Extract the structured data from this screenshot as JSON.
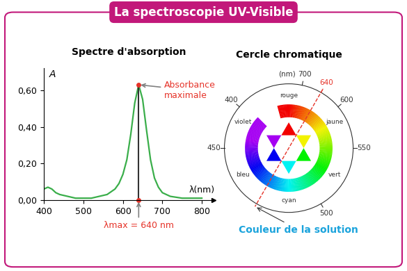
{
  "header": {
    "title": "La spectroscopie UV-Visible"
  },
  "chart_data": {
    "type": "line",
    "title": "Spectre d'absorption",
    "x_label": "λ(nm)",
    "y_label": "A",
    "color": "#3aae4a",
    "x": [
      400,
      410,
      420,
      430,
      440,
      460,
      480,
      500,
      520,
      540,
      560,
      580,
      590,
      600,
      610,
      620,
      630,
      640,
      650,
      660,
      670,
      680,
      690,
      700,
      720,
      750,
      800
    ],
    "values": [
      0.06,
      0.07,
      0.06,
      0.04,
      0.03,
      0.02,
      0.01,
      0.01,
      0.01,
      0.02,
      0.03,
      0.06,
      0.09,
      0.14,
      0.22,
      0.36,
      0.53,
      0.63,
      0.55,
      0.38,
      0.22,
      0.12,
      0.07,
      0.04,
      0.02,
      0.01,
      0.01
    ],
    "xlim": [
      400,
      830
    ],
    "ylim": [
      0,
      0.72
    ],
    "xticks": [
      400,
      500,
      600,
      700,
      800
    ],
    "yticks": [
      {
        "value": 0,
        "label": "0,00"
      },
      {
        "value": 0.2,
        "label": "0,20"
      },
      {
        "value": 0.4,
        "label": "0,40"
      },
      {
        "value": 0.6,
        "label": "0,60"
      }
    ],
    "peak": {
      "x": 640,
      "y": 0.63
    },
    "annotations": {
      "peak": "Absorbance\nmaximale",
      "lambda_max": "λmax = 640 nm"
    }
  },
  "color_wheel": {
    "title": "Cercle chromatique",
    "unit": "(nm)",
    "wavelengths": [
      400,
      450,
      500,
      550,
      600,
      640,
      700
    ],
    "highlight": 640,
    "color_names": [
      "rouge",
      "jaune",
      "vert",
      "cyan",
      "bleu",
      "violet"
    ],
    "annotation": "Couleur de la solution"
  }
}
